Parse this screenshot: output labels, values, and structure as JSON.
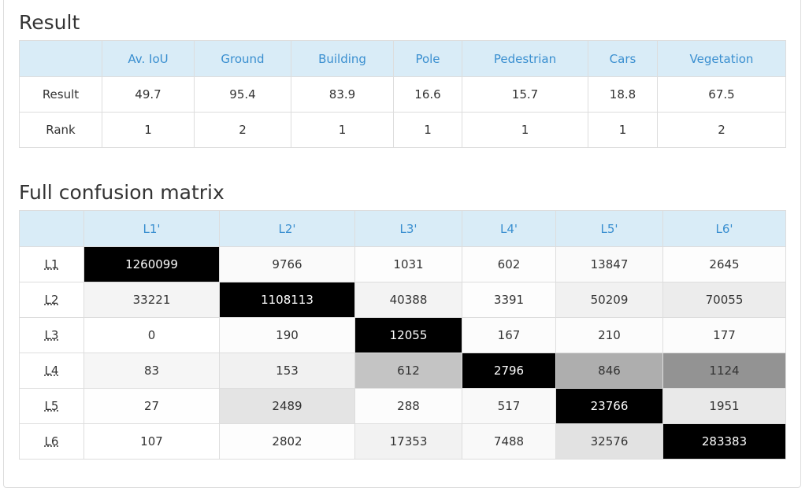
{
  "result": {
    "title": "Result",
    "columns": [
      "",
      "Av. IoU",
      "Ground",
      "Building",
      "Pole",
      "Pedestrian",
      "Cars",
      "Vegetation"
    ],
    "rows": [
      {
        "label": "Result",
        "values": [
          "49.7",
          "95.4",
          "83.9",
          "16.6",
          "15.7",
          "18.8",
          "67.5"
        ]
      },
      {
        "label": "Rank",
        "values": [
          "1",
          "2",
          "1",
          "1",
          "1",
          "1",
          "2"
        ]
      }
    ]
  },
  "confusion": {
    "title": "Full confusion matrix",
    "columns": [
      "",
      "L1'",
      "L2'",
      "L3'",
      "L4'",
      "L5'",
      "L6'"
    ],
    "rows": [
      {
        "label": "L1",
        "values": [
          "1260099",
          "9766",
          "1031",
          "602",
          "13847",
          "2645"
        ],
        "shades": [
          "#000000",
          "#fafafa",
          "#fdfdfd",
          "#fdfdfd",
          "#fafafa",
          "#fdfdfd"
        ]
      },
      {
        "label": "L2",
        "values": [
          "33221",
          "1108113",
          "40388",
          "3391",
          "50209",
          "70055"
        ],
        "shades": [
          "#f4f4f4",
          "#000000",
          "#f3f3f3",
          "#fdfdfd",
          "#f1f1f1",
          "#ececec"
        ]
      },
      {
        "label": "L3",
        "values": [
          "0",
          "190",
          "12055",
          "167",
          "210",
          "177"
        ],
        "shades": [
          "#ffffff",
          "#fcfcfc",
          "#000000",
          "#fcfcfc",
          "#fcfcfc",
          "#fcfcfc"
        ]
      },
      {
        "label": "L4",
        "values": [
          "83",
          "153",
          "612",
          "2796",
          "846",
          "1124"
        ],
        "shades": [
          "#f6f6f6",
          "#f1f1f1",
          "#c4c4c4",
          "#000000",
          "#aeaeae",
          "#939393"
        ]
      },
      {
        "label": "L5",
        "values": [
          "27",
          "2489",
          "288",
          "517",
          "23766",
          "1951"
        ],
        "shades": [
          "#fefefe",
          "#e4e4e4",
          "#fcfcfc",
          "#f9f9f9",
          "#000000",
          "#e9e9e9"
        ]
      },
      {
        "label": "L6",
        "values": [
          "107",
          "2802",
          "17353",
          "7488",
          "32576",
          "283383"
        ],
        "shades": [
          "#ffffff",
          "#fdfdfd",
          "#f2f2f2",
          "#f9f9f9",
          "#e2e2e2",
          "#000000"
        ]
      }
    ]
  }
}
